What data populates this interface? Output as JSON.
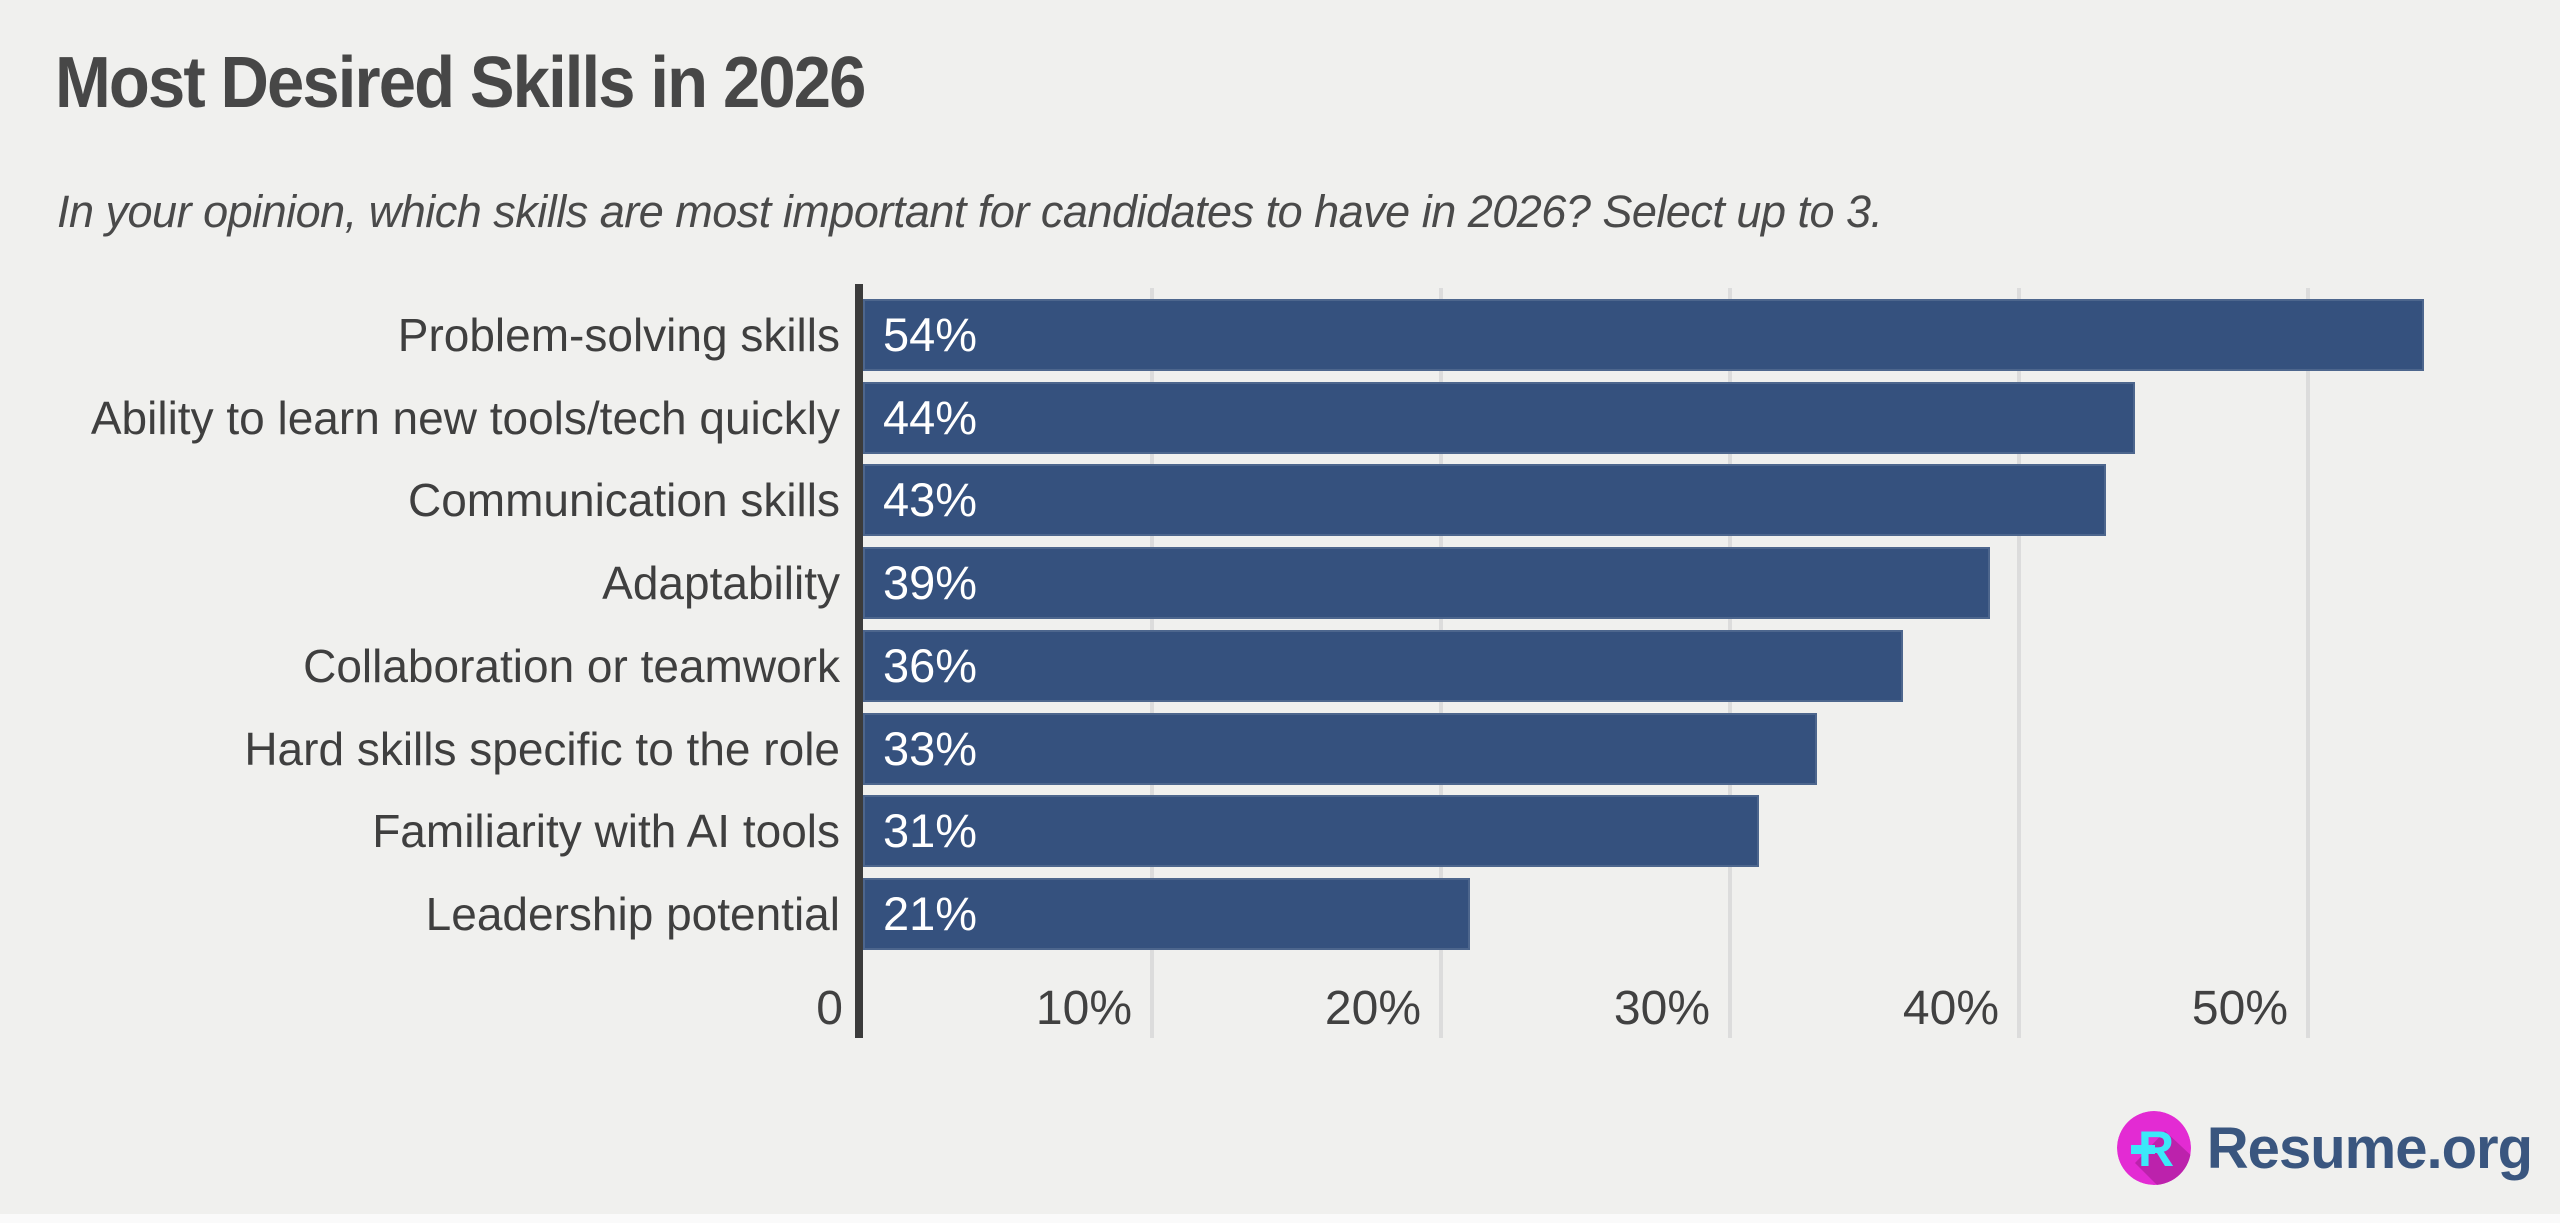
{
  "header": {
    "title": "Most Desired Skills in 2026",
    "subtitle": "In your opinion, which skills are most important for candidates to have in 2026? Select up to 3."
  },
  "chart_data": {
    "type": "bar",
    "orientation": "horizontal",
    "title": "Most Desired Skills in 2026",
    "categories": [
      "Problem-solving skills",
      "Ability to learn new tools/tech quickly",
      "Communication skills",
      "Adaptability",
      "Collaboration or teamwork",
      "Hard skills specific to the role",
      "Familiarity with AI tools",
      "Leadership potential"
    ],
    "values": [
      54,
      44,
      43,
      39,
      36,
      33,
      31,
      21
    ],
    "value_labels": [
      "54%",
      "44%",
      "43%",
      "39%",
      "36%",
      "33%",
      "31%",
      "21%"
    ],
    "x_tick_labels": [
      "0",
      "10%",
      "20%",
      "30%",
      "40%",
      "50%"
    ],
    "x_tick_values": [
      0,
      10,
      20,
      30,
      40,
      50
    ],
    "xlim": [
      0,
      58.7
    ],
    "grid": true,
    "legend": false,
    "bar_color": "#35517e",
    "value_label_color": "#ffffff"
  },
  "branding": {
    "logo_text": "Resume.org",
    "logo_icon": "resume-r-icon"
  },
  "colors": {
    "background": "#f0f0ee",
    "title": "#474747",
    "subtitle": "#4a4a4a",
    "axis": "#3b3b3b",
    "gridline": "#dcdcdc",
    "category_label": "#3f3f3f",
    "tick_label": "#414141",
    "logo_text": "#3a567f",
    "logo_circle": "#e32bd3",
    "logo_circle_shadow": "#bc22ac",
    "logo_r": "#3ce9f9",
    "bottom_strip": "#fafafa"
  }
}
